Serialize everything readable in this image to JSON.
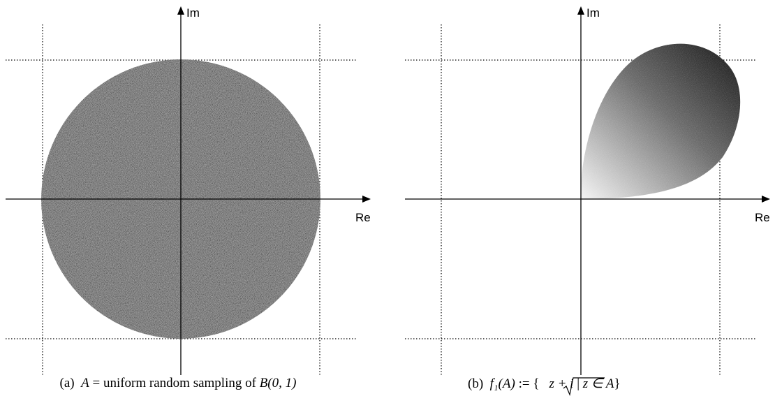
{
  "panels": [
    {
      "id": "a",
      "x_axis_label": "Re",
      "y_axis_label": "Im",
      "caption": {
        "prefix": "(a)",
        "math_lhs": "A",
        "eq": "=",
        "text": "uniform random sampling of",
        "math_rhs": "B(0, 1)"
      },
      "scatter_color": "#9a9a9a"
    },
    {
      "id": "b",
      "x_axis_label": "Re",
      "y_axis_label": "Im",
      "caption": {
        "prefix": "(b)",
        "math_lhs": "f₁(A)",
        "eq": ":=",
        "set_open": "{",
        "sqrt_arg": "z + i",
        "mid": "|",
        "cond": "z ∈ A",
        "set_close": "}"
      },
      "gradient_light": "#f4f4f4",
      "gradient_dark": "#141414"
    }
  ]
}
